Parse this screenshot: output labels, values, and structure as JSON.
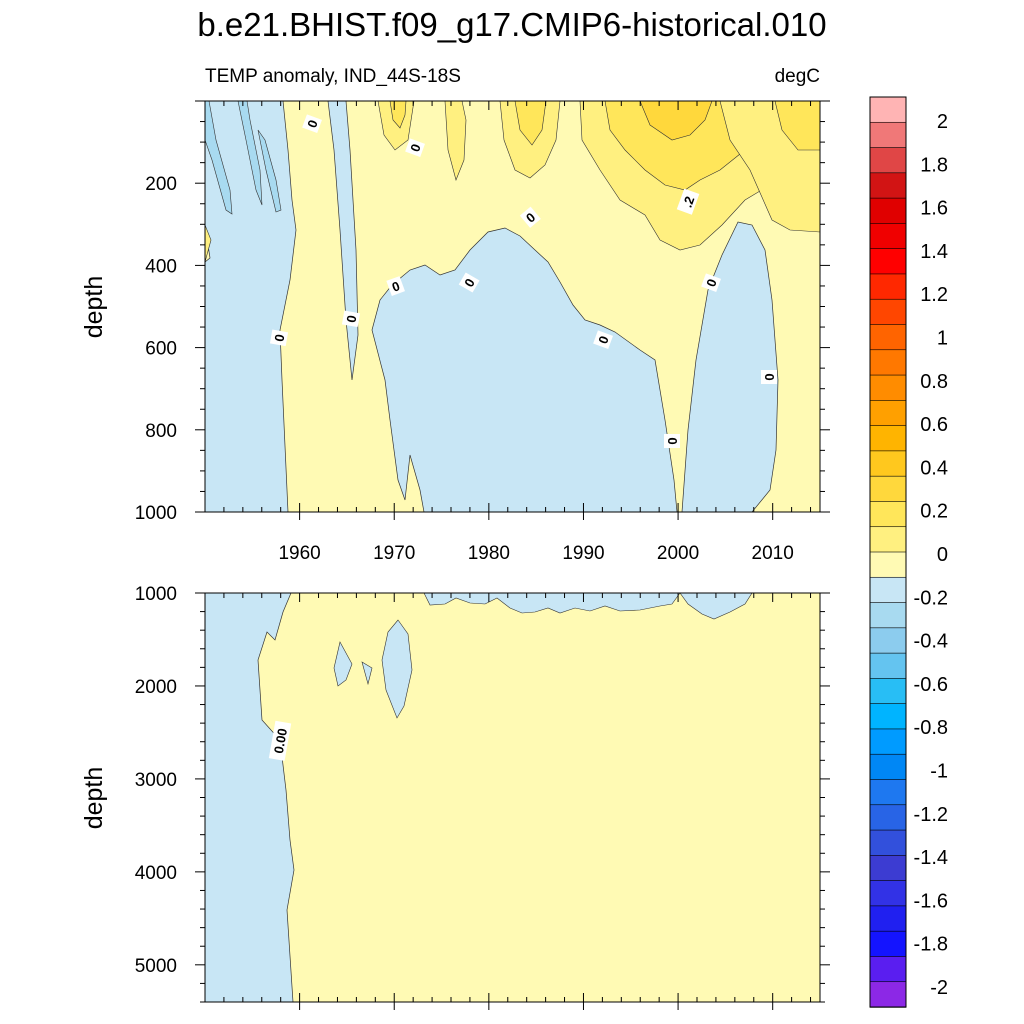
{
  "chart_data": {
    "type": "contour",
    "title": "b.e21.BHIST.f09_g17.CMIP6-historical.010",
    "subtitle_left": "TEMP anomaly, IND_44S-18S",
    "subtitle_right": "degC",
    "xlim": [
      1950,
      2015
    ],
    "x_ticks": [
      1960,
      1970,
      1980,
      1990,
      2000,
      2010
    ],
    "colorbar": {
      "labels": [
        "2",
        "1.8",
        "1.6",
        "1.4",
        "1.2",
        "1",
        "0.8",
        "0.6",
        "0.4",
        "0.2",
        "0",
        "-0.2",
        "-0.4",
        "-0.6",
        "-0.8",
        "-1",
        "-1.2",
        "-1.4",
        "-1.6",
        "-1.8",
        "-2"
      ],
      "colors": [
        "#ffb4b4",
        "#f07878",
        "#e04646",
        "#d21414",
        "#e00000",
        "#f00000",
        "#ff0000",
        "#ff2800",
        "#ff4600",
        "#ff6400",
        "#ff7800",
        "#ff8c00",
        "#ffa000",
        "#ffb400",
        "#ffc81e",
        "#ffd83c",
        "#ffe65a",
        "#fff080",
        "#fffab4",
        "#c8e6f5",
        "#a8daf0",
        "#8cccee",
        "#64c4f0",
        "#28bef5",
        "#00b4ff",
        "#009bff",
        "#0087f5",
        "#1e78f0",
        "#2864e6",
        "#3250dc",
        "#3c3cd2",
        "#3232e6",
        "#2020f0",
        "#1414ff",
        "#5a1ef0",
        "#8c28e6"
      ]
    },
    "panels": [
      {
        "name": "upper",
        "ylabel": "depth",
        "ylim": [
          0,
          1000
        ],
        "y_ticks": [
          200,
          400,
          600,
          800,
          1000
        ],
        "contour_labels": [
          "0",
          "0",
          "0",
          "0",
          "0",
          "0",
          "0",
          "0",
          "0",
          ".2",
          "0",
          "0",
          "0"
        ]
      },
      {
        "name": "lower",
        "ylabel": "depth",
        "ylim": [
          1000,
          5400
        ],
        "y_ticks": [
          1000,
          2000,
          3000,
          4000,
          5000
        ],
        "contour_labels": [
          "0.00"
        ]
      }
    ]
  }
}
